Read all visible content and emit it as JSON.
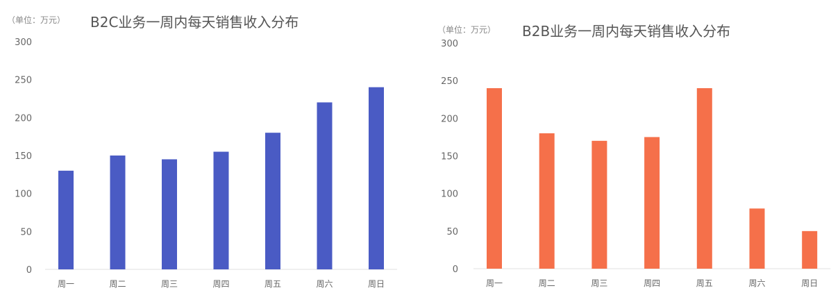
{
  "chart_data": [
    {
      "type": "bar",
      "unit_label": "（单位：万元）",
      "title": "B2C业务一周内每天销售收入分布",
      "categories": [
        "周一",
        "周二",
        "周三",
        "周四",
        "周五",
        "周六",
        "周日"
      ],
      "values": [
        130,
        150,
        145,
        155,
        180,
        220,
        240
      ],
      "ylim": [
        0,
        300
      ],
      "yticks": [
        0,
        50,
        100,
        150,
        200,
        250,
        300
      ],
      "xlabel": "",
      "ylabel": "",
      "bar_color": "#4a5bc4",
      "grid": false,
      "legend": "none"
    },
    {
      "type": "bar",
      "unit_label": "（单位：万元）",
      "title": "B2B业务一周内每天销售收入分布",
      "categories": [
        "周一",
        "周二",
        "周三",
        "周四",
        "周五",
        "周六",
        "周日"
      ],
      "values": [
        240,
        180,
        170,
        175,
        240,
        80,
        50
      ],
      "ylim": [
        0,
        300
      ],
      "yticks": [
        0,
        50,
        100,
        150,
        200,
        250,
        300
      ],
      "xlabel": "",
      "ylabel": "",
      "bar_color": "#f5704a",
      "grid": false,
      "legend": "none"
    }
  ]
}
